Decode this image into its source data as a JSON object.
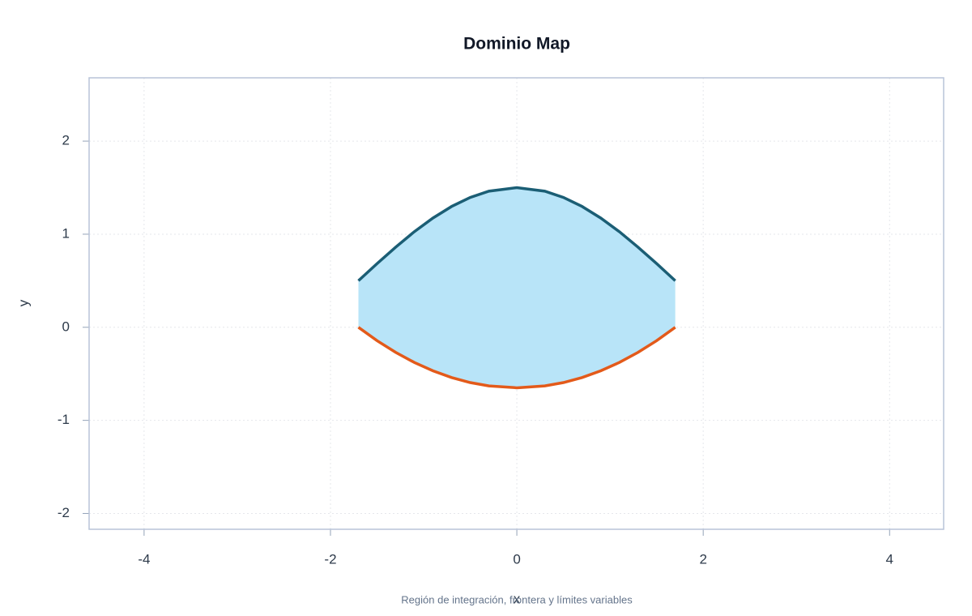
{
  "chart_data": {
    "type": "area-between",
    "title": "Dominio Map",
    "x_label": "x",
    "y_label": "y",
    "caption": "Región de integración, frontera y límites variables",
    "x": [
      -1.7,
      -1.5,
      -1.3,
      -1.1,
      -0.9,
      -0.7,
      -0.5,
      -0.3,
      0,
      0.3,
      0.5,
      0.7,
      0.9,
      1.1,
      1.3,
      1.5,
      1.7
    ],
    "series": [
      {
        "color": "#1b5e75",
        "values": [
          0.5,
          0.684,
          0.861,
          1.027,
          1.174,
          1.298,
          1.395,
          1.462,
          1.5,
          1.462,
          1.395,
          1.298,
          1.174,
          1.027,
          0.861,
          0.684,
          0.5
        ]
      },
      {
        "color": "#e35a1a",
        "values": [
          0,
          -0.144,
          -0.27,
          -0.378,
          -0.468,
          -0.54,
          -0.594,
          -0.63,
          -0.65,
          -0.63,
          -0.594,
          -0.54,
          -0.468,
          -0.378,
          -0.27,
          -0.144,
          0
        ]
      }
    ],
    "fill_color": "#b8e4f8",
    "xlim": [
      -4.59,
      4.58
    ],
    "ylim": [
      -2.17,
      2.68
    ],
    "xticks": [
      -4,
      -2,
      0,
      2,
      4
    ],
    "yticks": [
      -2,
      -1,
      0,
      1,
      2
    ],
    "grid": true
  }
}
